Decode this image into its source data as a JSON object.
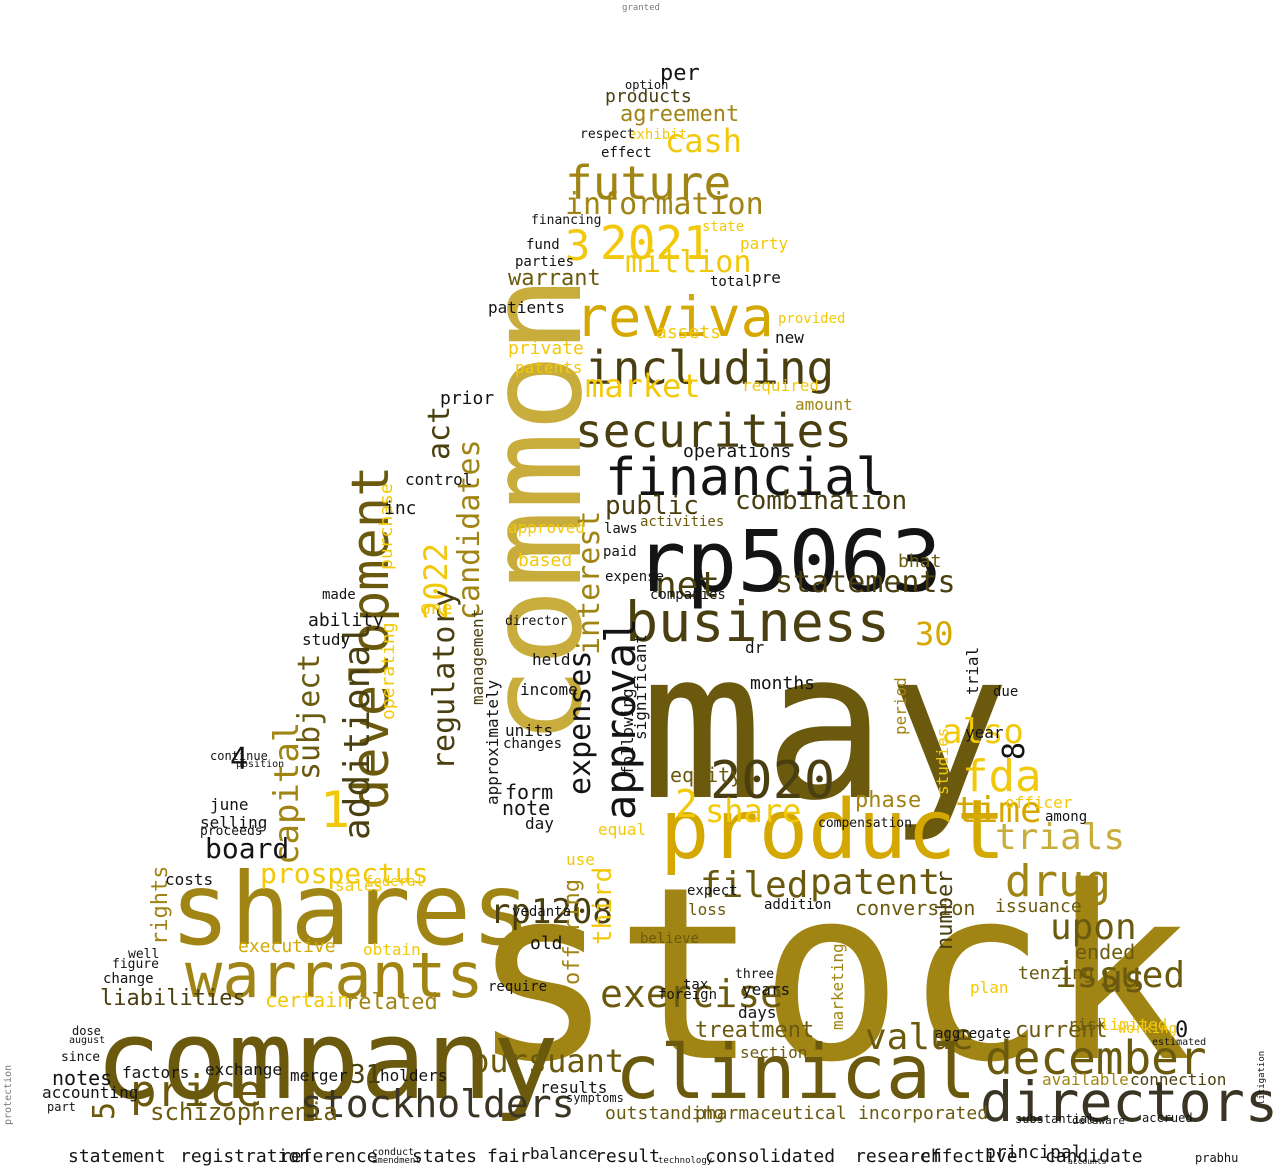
{
  "palette": {
    "black": "#141414",
    "dark": "#3a3424",
    "olive_dark": "#4a3f10",
    "olive": "#6b5a0e",
    "mustard": "#a08414",
    "gold": "#d4a800",
    "yellow": "#f2c80a",
    "khaki": "#c8ad3c",
    "gray": "#7a7a7a",
    "light": "#b8b8b8"
  },
  "words": [
    {
      "text": "stock",
      "color": "mustard"
    },
    {
      "text": "may",
      "color": "olive"
    },
    {
      "text": "common",
      "color": "khaki"
    },
    {
      "text": "company",
      "color": "olive"
    },
    {
      "text": "shares",
      "color": "mustard"
    },
    {
      "text": "rp5063",
      "color": "black"
    },
    {
      "text": "product",
      "color": "gold"
    },
    {
      "text": "clinical",
      "color": "olive"
    },
    {
      "text": "warrants",
      "color": "mustard"
    },
    {
      "text": "directors",
      "color": "dark"
    },
    {
      "text": "december",
      "color": "olive"
    },
    {
      "text": "stockholders",
      "color": "dark"
    },
    {
      "text": "financial",
      "color": "black"
    },
    {
      "text": "business",
      "color": "olive_dark"
    },
    {
      "text": "securities",
      "color": "olive_dark"
    },
    {
      "text": "including",
      "color": "olive_dark"
    },
    {
      "text": "reviva",
      "color": "gold"
    },
    {
      "text": "development",
      "color": "olive"
    },
    {
      "text": "price",
      "color": "olive"
    },
    {
      "text": "future",
      "color": "mustard"
    },
    {
      "text": "2020",
      "color": "olive_dark"
    },
    {
      "text": "2021",
      "color": "yellow"
    },
    {
      "text": "drug",
      "color": "mustard"
    },
    {
      "text": "approval",
      "color": "black"
    },
    {
      "text": "exercise",
      "color": "olive"
    },
    {
      "text": "value",
      "color": "olive"
    },
    {
      "text": "patent",
      "color": "olive"
    },
    {
      "text": "issued",
      "color": "olive"
    },
    {
      "text": "trials",
      "color": "khaki"
    },
    {
      "text": "time",
      "color": "gold"
    },
    {
      "text": "fda",
      "color": "yellow"
    },
    {
      "text": "also",
      "color": "yellow"
    },
    {
      "text": "upon",
      "color": "olive"
    },
    {
      "text": "us",
      "color": "olive"
    },
    {
      "text": "filed",
      "color": "olive"
    },
    {
      "text": "share",
      "color": "yellow"
    },
    {
      "text": "statements",
      "color": "olive_dark"
    },
    {
      "text": "combination",
      "color": "olive_dark"
    },
    {
      "text": "information",
      "color": "mustard"
    },
    {
      "text": "market",
      "color": "yellow"
    },
    {
      "text": "million",
      "color": "yellow"
    },
    {
      "text": "cash",
      "color": "yellow"
    },
    {
      "text": "net",
      "color": "olive_dark"
    },
    {
      "text": "pursuant",
      "color": "olive"
    },
    {
      "text": "rp1208",
      "color": "olive_dark"
    },
    {
      "text": "capital",
      "color": "mustard"
    },
    {
      "text": "additional",
      "color": "olive_dark"
    },
    {
      "text": "candidates",
      "color": "mustard"
    },
    {
      "text": "2022",
      "color": "yellow"
    },
    {
      "text": "regulatory",
      "color": "olive_dark"
    },
    {
      "text": "expenses",
      "color": "black"
    },
    {
      "text": "interest",
      "color": "mustard"
    },
    {
      "text": "public",
      "color": "olive_dark"
    },
    {
      "text": "subject",
      "color": "olive"
    },
    {
      "text": "board",
      "color": "black"
    },
    {
      "text": "prospectus",
      "color": "yellow"
    },
    {
      "text": "liabilities",
      "color": "olive_dark"
    },
    {
      "text": "schizophrenia",
      "color": "olive"
    },
    {
      "text": "notes",
      "color": "black"
    },
    {
      "text": "warrant",
      "color": "olive"
    },
    {
      "text": "agreement",
      "color": "mustard"
    },
    {
      "text": "products",
      "color": "olive_dark"
    },
    {
      "text": "per",
      "color": "black"
    },
    {
      "text": "treatment",
      "color": "olive"
    },
    {
      "text": "current",
      "color": "olive"
    },
    {
      "text": "phase",
      "color": "mustard"
    },
    {
      "text": "third",
      "color": "yellow"
    },
    {
      "text": "offering",
      "color": "mustard"
    },
    {
      "text": "related",
      "color": "mustard"
    },
    {
      "text": "rights",
      "color": "mustard"
    },
    {
      "text": "executive",
      "color": "gold"
    },
    {
      "text": "act",
      "color": "olive_dark"
    },
    {
      "text": "30",
      "color": "gold"
    },
    {
      "text": "31",
      "color": "olive_dark"
    },
    {
      "text": "1",
      "color": "yellow"
    },
    {
      "text": "2",
      "color": "yellow"
    },
    {
      "text": "3",
      "color": "yellow"
    },
    {
      "text": "4",
      "color": "black"
    },
    {
      "text": "5",
      "color": "olive"
    },
    {
      "text": "8",
      "color": "black"
    },
    {
      "text": "0",
      "color": "black"
    },
    {
      "text": "outstanding",
      "color": "olive"
    },
    {
      "text": "pharmaceutical",
      "color": "olive"
    },
    {
      "text": "incorporated",
      "color": "olive"
    },
    {
      "text": "available",
      "color": "mustard"
    },
    {
      "text": "connection",
      "color": "olive_dark"
    },
    {
      "text": "ended",
      "color": "olive"
    },
    {
      "text": "tenzing",
      "color": "olive"
    },
    {
      "text": "conversion",
      "color": "olive"
    },
    {
      "text": "number",
      "color": "olive_dark"
    },
    {
      "text": "equity",
      "color": "olive"
    },
    {
      "text": "form",
      "color": "black"
    },
    {
      "text": "note",
      "color": "black"
    },
    {
      "text": "months",
      "color": "black"
    },
    {
      "text": "certain",
      "color": "yellow"
    },
    {
      "text": "purchase",
      "color": "yellow"
    },
    {
      "text": "operating",
      "color": "yellow"
    },
    {
      "text": "costs",
      "color": "black"
    },
    {
      "text": "selling",
      "color": "black"
    },
    {
      "text": "proceeds",
      "color": "black"
    },
    {
      "text": "june",
      "color": "black"
    },
    {
      "text": "study",
      "color": "black"
    },
    {
      "text": "ability",
      "color": "black"
    },
    {
      "text": "patients",
      "color": "black"
    },
    {
      "text": "assets",
      "color": "yellow"
    },
    {
      "text": "operations",
      "color": "black"
    },
    {
      "text": "bhat",
      "color": "olive"
    },
    {
      "text": "amount",
      "color": "mustard"
    },
    {
      "text": "required",
      "color": "yellow"
    },
    {
      "text": "party",
      "color": "yellow"
    },
    {
      "text": "management",
      "color": "olive_dark"
    },
    {
      "text": "approximately",
      "color": "black"
    },
    {
      "text": "significant",
      "color": "black"
    },
    {
      "text": "following",
      "color": "black"
    },
    {
      "text": "private",
      "color": "yellow"
    },
    {
      "text": "patents",
      "color": "yellow"
    },
    {
      "text": "based",
      "color": "yellow"
    },
    {
      "text": "year",
      "color": "black"
    },
    {
      "text": "trial",
      "color": "black"
    },
    {
      "text": "studies",
      "color": "yellow"
    },
    {
      "text": "period",
      "color": "mustard"
    },
    {
      "text": "marketing",
      "color": "mustard"
    },
    {
      "text": "issuance",
      "color": "olive"
    },
    {
      "text": "risk",
      "color": "olive"
    },
    {
      "text": "limited",
      "color": "yellow"
    },
    {
      "text": "section",
      "color": "olive"
    },
    {
      "text": "merger",
      "color": "black"
    },
    {
      "text": "holders",
      "color": "black"
    },
    {
      "text": "accounting",
      "color": "black"
    },
    {
      "text": "exchange",
      "color": "black"
    },
    {
      "text": "factors",
      "color": "black"
    },
    {
      "text": "results",
      "color": "black"
    },
    {
      "text": "day",
      "color": "black"
    },
    {
      "text": "old",
      "color": "black"
    },
    {
      "text": "years",
      "color": "black"
    },
    {
      "text": "days",
      "color": "black"
    },
    {
      "text": "three",
      "color": "black"
    },
    {
      "text": "inc",
      "color": "black"
    },
    {
      "text": "control",
      "color": "black"
    },
    {
      "text": "prior",
      "color": "black"
    },
    {
      "text": "new",
      "color": "black"
    },
    {
      "text": "pre",
      "color": "black"
    },
    {
      "text": "effect",
      "color": "black"
    },
    {
      "text": "exhibit",
      "color": "yellow"
    },
    {
      "text": "option",
      "color": "black"
    },
    {
      "text": "statement",
      "color": "black"
    },
    {
      "text": "registration",
      "color": "black"
    },
    {
      "text": "reference",
      "color": "black"
    },
    {
      "text": "states",
      "color": "black"
    },
    {
      "text": "fair",
      "color": "black"
    },
    {
      "text": "balance",
      "color": "black"
    },
    {
      "text": "result",
      "color": "black"
    },
    {
      "text": "consolidated",
      "color": "black"
    },
    {
      "text": "research",
      "color": "black"
    },
    {
      "text": "effective",
      "color": "black"
    },
    {
      "text": "candidate",
      "color": "black"
    },
    {
      "text": "principal",
      "color": "black"
    },
    {
      "text": "prabhu",
      "color": "black"
    },
    {
      "text": "granted",
      "color": "gray"
    },
    {
      "text": "protection",
      "color": "gray"
    },
    {
      "text": "litigation",
      "color": "black"
    },
    {
      "text": "director",
      "color": "black"
    },
    {
      "text": "held",
      "color": "black"
    },
    {
      "text": "income",
      "color": "black"
    },
    {
      "text": "units",
      "color": "black"
    },
    {
      "text": "changes",
      "color": "black"
    },
    {
      "text": "companies",
      "color": "black"
    },
    {
      "text": "dr",
      "color": "black"
    },
    {
      "text": "due",
      "color": "black"
    },
    {
      "text": "officer",
      "color": "yellow"
    },
    {
      "text": "among",
      "color": "black"
    },
    {
      "text": "sales",
      "color": "yellow"
    },
    {
      "text": "federal",
      "color": "yellow"
    },
    {
      "text": "obtain",
      "color": "yellow"
    },
    {
      "text": "change",
      "color": "black"
    },
    {
      "text": "well",
      "color": "black"
    },
    {
      "text": "figure",
      "color": "black"
    },
    {
      "text": "plan",
      "color": "yellow"
    },
    {
      "text": "total",
      "color": "black"
    },
    {
      "text": "fund",
      "color": "black"
    },
    {
      "text": "financing",
      "color": "black"
    },
    {
      "text": "parties",
      "color": "black"
    },
    {
      "text": "respect",
      "color": "black"
    },
    {
      "text": "compensation",
      "color": "black"
    },
    {
      "text": "addition",
      "color": "black"
    },
    {
      "text": "vedanta",
      "color": "black"
    },
    {
      "text": "approved",
      "color": "yellow"
    },
    {
      "text": "activities",
      "color": "olive"
    },
    {
      "text": "laws",
      "color": "black"
    },
    {
      "text": "state",
      "color": "yellow"
    },
    {
      "text": "provided",
      "color": "yellow"
    },
    {
      "text": "aggregate",
      "color": "black"
    },
    {
      "text": "working",
      "color": "yellow"
    },
    {
      "text": "expense",
      "color": "black"
    },
    {
      "text": "paid",
      "color": "black"
    },
    {
      "text": "equal",
      "color": "yellow"
    },
    {
      "text": "use",
      "color": "yellow"
    },
    {
      "text": "require",
      "color": "black"
    },
    {
      "text": "loss",
      "color": "olive"
    },
    {
      "text": "tax",
      "color": "black"
    },
    {
      "text": "foreign",
      "color": "black"
    },
    {
      "text": "expect",
      "color": "black"
    },
    {
      "text": "believe",
      "color": "olive"
    },
    {
      "text": "one",
      "color": "yellow"
    },
    {
      "text": "made",
      "color": "black"
    },
    {
      "text": "continue",
      "color": "black"
    },
    {
      "text": "position",
      "color": "black"
    },
    {
      "text": "dose",
      "color": "black"
    },
    {
      "text": "august",
      "color": "black"
    },
    {
      "text": "since",
      "color": "black"
    },
    {
      "text": "part",
      "color": "black"
    },
    {
      "text": "symptoms",
      "color": "black"
    },
    {
      "text": "substantial",
      "color": "black"
    },
    {
      "text": "delaware",
      "color": "black"
    },
    {
      "text": "accrued",
      "color": "black"
    },
    {
      "text": "estimated",
      "color": "black"
    },
    {
      "text": "technology",
      "color": "black"
    },
    {
      "text": "conduct",
      "color": "black"
    },
    {
      "text": "amendment",
      "color": "black"
    },
    {
      "text": "accounts",
      "color": "black"
    }
  ]
}
